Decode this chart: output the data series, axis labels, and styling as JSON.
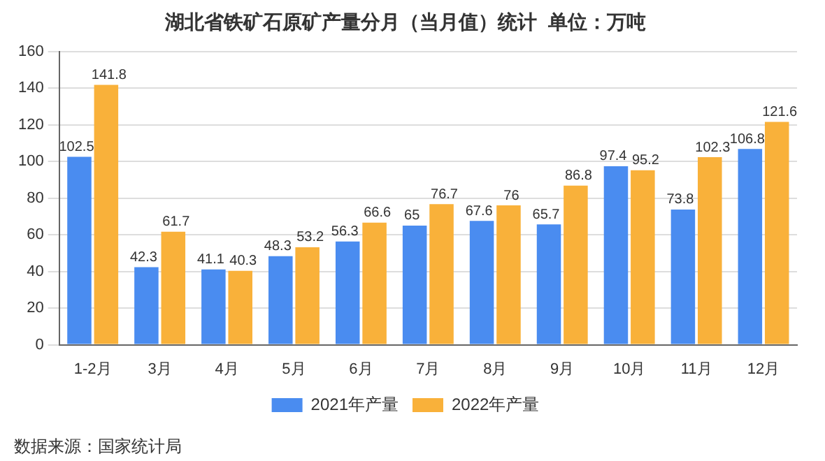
{
  "chart_data": {
    "type": "bar",
    "title": "湖北省铁矿石原矿产量分月（当月值）统计  单位：万吨",
    "categories": [
      "1-2月",
      "3月",
      "4月",
      "5月",
      "6月",
      "7月",
      "8月",
      "9月",
      "10月",
      "11月",
      "12月"
    ],
    "series": [
      {
        "name": "2021年产量",
        "color": "#4a8cf0",
        "values": [
          102.5,
          42.3,
          41.1,
          48.3,
          56.3,
          65,
          67.6,
          65.7,
          97.4,
          73.8,
          106.8
        ]
      },
      {
        "name": "2022年产量",
        "color": "#f9b13a",
        "values": [
          141.8,
          61.7,
          40.3,
          53.2,
          66.6,
          76.7,
          76,
          86.8,
          95.2,
          102.3,
          121.6
        ]
      }
    ],
    "ylim": [
      0,
      160
    ],
    "yticks": [
      0,
      20,
      40,
      60,
      80,
      100,
      120,
      140,
      160
    ],
    "grid": "y",
    "legend": "bottom",
    "data_labels": true,
    "annotations": [
      "数据来源：国家统计局"
    ]
  }
}
